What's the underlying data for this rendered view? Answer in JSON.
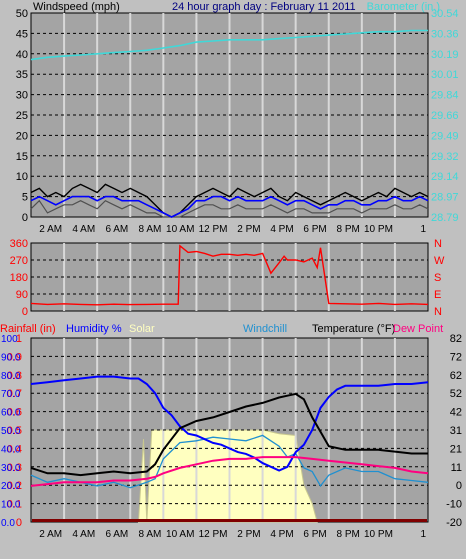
{
  "title": "24 hour graph day : February 11 2011",
  "colors": {
    "bg": "#c0c0c0",
    "plot": "#a4a4a4",
    "grid_v": "#d8d8d8",
    "grid_h": "#000000",
    "wind": "#000000",
    "gust": "#0000ff",
    "windlow": "#505050",
    "baro": "#40d8d8",
    "dir": "#ff0000",
    "humid": "#0000ff",
    "solar": "#ffffc0",
    "solar_edge": "#c8c890",
    "windchill": "#2090d0",
    "temp": "#000000",
    "dew": "#ff0080",
    "rain": "#ff0000",
    "rainbar": "#800000"
  },
  "x_ticks": [
    "2 AM",
    "4 AM",
    "6 AM",
    "8 AM",
    "10 AM",
    "12 PM",
    "2 PM",
    "4 PM",
    "6 PM",
    "8 PM",
    "10 PM",
    "1"
  ],
  "panel1": {
    "left_title": "Windspeed (mph)",
    "right_title": "Barometer (in.)",
    "left_ticks": [
      "0",
      "5",
      "10",
      "15",
      "20",
      "25",
      "30",
      "35",
      "40",
      "45",
      "50"
    ],
    "right_ticks": [
      "28.79",
      "28.97",
      "29.14",
      "29.32",
      "29.49",
      "29.66",
      "29.84",
      "30.01",
      "30.19",
      "30.36",
      "30.54"
    ]
  },
  "panel2": {
    "left_ticks": [
      "0",
      "90",
      "180",
      "270",
      "360"
    ],
    "right_ticks": [
      "N",
      "E",
      "S",
      "W",
      "N"
    ]
  },
  "panel3": {
    "labels": {
      "rain": "Rainfall (in)",
      "humid": "Humidity %",
      "solar": "Solar",
      "windchill": "Windchill",
      "temp": "Temperature (°F)",
      "dew": "Dew Point"
    },
    "rain_ticks": [
      "0",
      "0.1",
      "0.2",
      "0.3",
      "0.4",
      "0.5",
      "0.6",
      "0.7",
      "0.8",
      "0.9",
      "1"
    ],
    "humid_ticks": [
      "0.0",
      "10.0",
      "20.0",
      "30.0",
      "40.0",
      "50.0",
      "60.0",
      "70.0",
      "80.0",
      "90.0",
      "100"
    ],
    "temp_ticks": [
      "-20",
      "-10",
      "0",
      "11",
      "21",
      "31",
      "42",
      "52",
      "62",
      "72",
      "82"
    ]
  },
  "chart_data": [
    {
      "type": "line",
      "x_unit": "hour of day",
      "xlim": [
        0,
        24
      ],
      "ylim": [
        0,
        50
      ],
      "y2lim": [
        28.79,
        30.54
      ],
      "series": [
        {
          "axis": "left",
          "x": [
            0,
            0.5,
            1,
            1.5,
            2,
            2.5,
            3,
            3.5,
            4,
            4.5,
            5,
            5.5,
            6,
            6.5,
            7,
            7.5,
            8,
            8.5,
            9,
            9.5,
            10,
            10.5,
            11,
            11.5,
            12,
            12.5,
            13,
            13.5,
            14,
            14.5,
            15,
            15.5,
            16,
            16.5,
            17,
            17.5,
            18,
            18.5,
            19,
            19.5,
            20,
            20.5,
            21,
            21.5,
            22,
            22.5,
            23,
            23.5,
            24
          ],
          "y": [
            6,
            7,
            5,
            6,
            5,
            7,
            8,
            7,
            6,
            8,
            7,
            6,
            7,
            6,
            5,
            3,
            1,
            0,
            1,
            3,
            5,
            6,
            7,
            6,
            5,
            7,
            6,
            5,
            6,
            7,
            5,
            4,
            6,
            5,
            4,
            3,
            4,
            5,
            6,
            5,
            4,
            5,
            6,
            5,
            7,
            6,
            5,
            6,
            5
          ]
        },
        {
          "axis": "left",
          "x": [
            0,
            0.5,
            1,
            1.5,
            2,
            2.5,
            3,
            3.5,
            4,
            4.5,
            5,
            5.5,
            6,
            6.5,
            7,
            7.5,
            8,
            8.5,
            9,
            9.5,
            10,
            10.5,
            11,
            11.5,
            12,
            12.5,
            13,
            13.5,
            14,
            14.5,
            15,
            15.5,
            16,
            16.5,
            17,
            17.5,
            18,
            18.5,
            19,
            19.5,
            20,
            20.5,
            21,
            21.5,
            22,
            22.5,
            23,
            23.5,
            24
          ],
          "y": [
            4,
            5,
            4,
            3,
            4,
            5,
            5,
            5,
            4,
            5,
            5,
            4,
            4,
            4,
            3,
            2,
            1,
            0,
            1,
            2,
            4,
            4,
            5,
            5,
            4,
            5,
            4,
            4,
            4,
            5,
            4,
            3,
            4,
            4,
            3,
            2,
            3,
            3,
            4,
            4,
            3,
            3,
            4,
            4,
            5,
            4,
            4,
            5,
            4
          ]
        },
        {
          "axis": "left",
          "x": [
            0,
            0.5,
            1,
            1.5,
            2,
            2.5,
            3,
            3.5,
            4,
            4.5,
            5,
            5.5,
            6,
            6.5,
            7,
            7.5,
            8,
            8.5,
            9,
            9.5,
            10,
            10.5,
            11,
            11.5,
            12,
            12.5,
            13,
            13.5,
            14,
            14.5,
            15,
            15.5,
            16,
            16.5,
            17,
            17.5,
            18,
            18.5,
            19,
            19.5,
            20,
            20.5,
            21,
            21.5,
            22,
            22.5,
            23,
            23.5,
            24
          ],
          "y": [
            2,
            4,
            1,
            2,
            3,
            3,
            4,
            3,
            2,
            4,
            3,
            2,
            3,
            2,
            1,
            1,
            0,
            0,
            0,
            1,
            2,
            3,
            3,
            2,
            2,
            3,
            2,
            2,
            2,
            3,
            2,
            1,
            2,
            2,
            1,
            1,
            1,
            2,
            2,
            2,
            1,
            2,
            2,
            2,
            3,
            2,
            2,
            3,
            2
          ]
        },
        {
          "axis": "right",
          "x": [
            0,
            1,
            2,
            3,
            4,
            5,
            6,
            7,
            8,
            9,
            10,
            11,
            12,
            13,
            14,
            15,
            16,
            17,
            18,
            19,
            20,
            21,
            22,
            23,
            24
          ],
          "y": [
            30.14,
            30.16,
            30.17,
            30.18,
            30.19,
            30.2,
            30.21,
            30.22,
            30.24,
            30.26,
            30.29,
            30.3,
            30.31,
            30.31,
            30.31,
            30.32,
            30.33,
            30.34,
            30.35,
            30.36,
            30.37,
            30.38,
            30.38,
            30.39,
            30.39
          ]
        }
      ]
    },
    {
      "type": "line",
      "x_unit": "hour of day",
      "xlim": [
        0,
        24
      ],
      "ylim": [
        0,
        360
      ],
      "series": [
        {
          "x": [
            0,
            1,
            2,
            3,
            4,
            5,
            6,
            7,
            8,
            8.9,
            9,
            9.5,
            10,
            10.5,
            11,
            11.5,
            12,
            12.5,
            13,
            13.5,
            14,
            14.5,
            15,
            15.3,
            15.5,
            16,
            16.5,
            17,
            17.3,
            17.5,
            18,
            19,
            20,
            21,
            22,
            23,
            24
          ],
          "y": [
            40,
            35,
            38,
            35,
            33,
            36,
            34,
            35,
            36,
            36,
            345,
            310,
            315,
            305,
            290,
            300,
            300,
            295,
            300,
            295,
            305,
            200,
            255,
            290,
            270,
            270,
            260,
            280,
            230,
            335,
            40,
            38,
            36,
            40,
            35,
            38,
            35
          ]
        }
      ]
    },
    {
      "type": "area",
      "x_unit": "hour of day",
      "xlim": [
        0,
        24
      ],
      "ylim_humidity": [
        0,
        100
      ],
      "ylim_temperature": [
        -20,
        82
      ],
      "series": [
        {
          "axis": "humidity",
          "x": [
            0,
            1,
            2,
            3,
            4,
            5,
            6,
            6.5,
            7,
            7.5,
            8,
            8.5,
            9,
            9.5,
            10,
            10.5,
            11,
            11.5,
            12,
            12.5,
            13,
            13.5,
            14,
            14.5,
            15,
            15.5,
            16,
            16.5,
            17,
            17.5,
            18,
            18.5,
            19,
            20,
            21,
            22,
            23,
            24
          ],
          "y": [
            75,
            76,
            77,
            78,
            79,
            79,
            78,
            78,
            75,
            70,
            62,
            58,
            52,
            48,
            47,
            45,
            43,
            42,
            40,
            38,
            37,
            35,
            32,
            30,
            28,
            30,
            38,
            42,
            50,
            62,
            68,
            72,
            74,
            74,
            74,
            75,
            75,
            76
          ]
        },
        {
          "axis": "humidity",
          "x": [
            6.5,
            6.8,
            7,
            7.3,
            7.5,
            8,
            10,
            12,
            14,
            15,
            16,
            16.5,
            17,
            17.3
          ],
          "y": [
            0,
            45,
            0,
            50,
            50,
            50,
            50,
            50,
            50,
            48,
            47,
            20,
            10,
            0
          ]
        },
        {
          "axis": "temperature",
          "x": [
            0,
            1,
            2,
            3,
            4,
            5,
            6,
            7,
            7.5,
            8,
            9,
            10,
            11,
            12,
            13,
            14,
            15,
            15.5,
            16,
            16.5,
            17,
            17.5,
            18,
            19,
            20,
            21,
            22,
            23,
            24
          ],
          "y": [
            6,
            2,
            4,
            2,
            0,
            2,
            -1,
            2,
            4,
            15,
            24,
            25,
            27,
            26,
            25,
            28,
            22,
            16,
            18,
            10,
            8,
            0,
            6,
            10,
            8,
            8,
            4,
            3,
            2
          ]
        },
        {
          "axis": "temperature",
          "x": [
            0,
            1,
            2,
            3,
            4,
            5,
            6,
            7,
            7.5,
            8,
            9,
            10,
            11,
            12,
            13,
            14,
            15,
            15.5,
            16,
            16.5,
            17,
            17.5,
            18,
            19,
            20,
            21,
            22,
            23,
            24
          ],
          "y": [
            10,
            7,
            7,
            6,
            7,
            8,
            7,
            8,
            12,
            20,
            32,
            36,
            38,
            41,
            44,
            46,
            49,
            50,
            51,
            48,
            38,
            30,
            22,
            20,
            20,
            20,
            19,
            18,
            18
          ]
        },
        {
          "axis": "temperature",
          "x": [
            0,
            1,
            2,
            3,
            4,
            5,
            6,
            7,
            7.5,
            8,
            9,
            10,
            11,
            12,
            13,
            14,
            15,
            16,
            17,
            18,
            19,
            20,
            21,
            22,
            23,
            24
          ],
          "y": [
            0,
            1,
            2,
            2,
            2,
            3,
            3,
            4,
            5,
            7,
            10,
            12,
            14,
            15,
            15,
            16,
            16,
            16,
            15,
            14,
            13,
            12,
            11,
            10,
            8,
            7
          ]
        },
        {
          "axis": "humidity",
          "x": [
            0,
            6.5,
            7.2,
            24
          ],
          "y": [
            0,
            0,
            0.3,
            0.3
          ]
        }
      ]
    }
  ]
}
